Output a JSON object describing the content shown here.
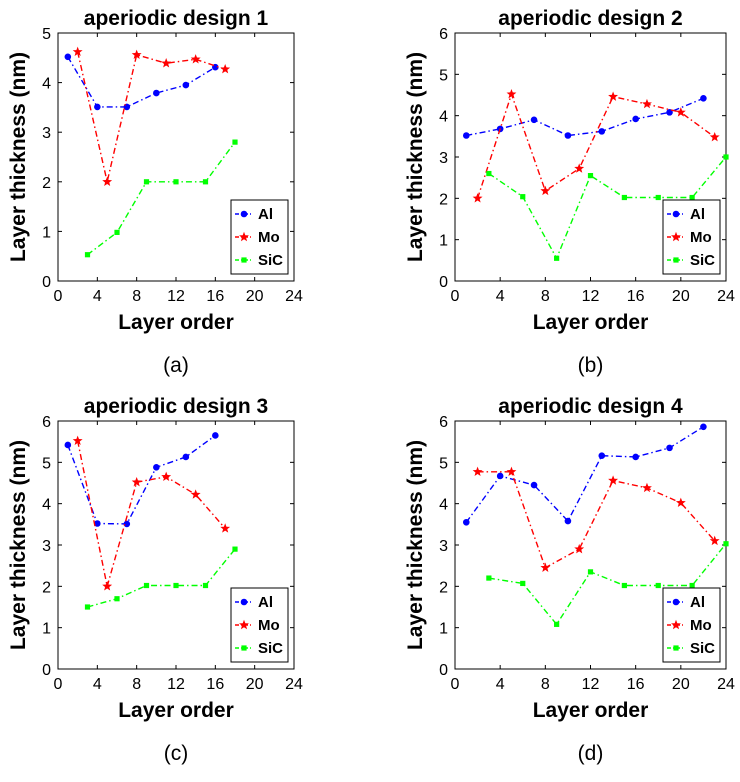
{
  "chart_data": [
    {
      "type": "line",
      "title": "aperiodic design 1",
      "caption": "(a)",
      "xlabel": "Layer order",
      "ylabel": "Layer thickness (nm)",
      "xlim": [
        0,
        24
      ],
      "ylim": [
        0,
        5
      ],
      "xticks": [
        0,
        4,
        8,
        12,
        16,
        20,
        24
      ],
      "yticks": [
        0,
        1,
        2,
        3,
        4,
        5
      ],
      "grid": false,
      "legend": "bottom-right",
      "series": [
        {
          "name": "Al",
          "color": "#0000ff",
          "marker": "circle",
          "x": [
            1,
            4,
            7,
            10,
            13,
            16
          ],
          "y": [
            4.52,
            3.51,
            3.51,
            3.79,
            3.95,
            4.31
          ]
        },
        {
          "name": "Mo",
          "color": "#ff0000",
          "marker": "star",
          "x": [
            2,
            5,
            8,
            11,
            14,
            17
          ],
          "y": [
            4.62,
            2.0,
            4.56,
            4.39,
            4.47,
            4.27
          ]
        },
        {
          "name": "SiC",
          "color": "#00ff00",
          "marker": "square",
          "x": [
            3,
            6,
            9,
            12,
            15,
            18
          ],
          "y": [
            0.53,
            0.98,
            2.0,
            2.0,
            2.0,
            2.8
          ]
        }
      ]
    },
    {
      "type": "line",
      "title": "aperiodic design 2",
      "caption": "(b)",
      "xlabel": "Layer order",
      "ylabel": "Layer thickness (nm)",
      "xlim": [
        0,
        24
      ],
      "ylim": [
        0,
        6
      ],
      "xticks": [
        0,
        4,
        8,
        12,
        16,
        20,
        24
      ],
      "yticks": [
        0,
        1,
        2,
        3,
        4,
        5,
        6
      ],
      "grid": false,
      "legend": "bottom-right",
      "series": [
        {
          "name": "Al",
          "color": "#0000ff",
          "marker": "circle",
          "x": [
            1,
            4,
            7,
            10,
            13,
            16,
            19,
            22
          ],
          "y": [
            3.52,
            3.68,
            3.9,
            3.52,
            3.62,
            3.92,
            4.08,
            4.42
          ]
        },
        {
          "name": "Mo",
          "color": "#ff0000",
          "marker": "star",
          "x": [
            2,
            5,
            8,
            11,
            14,
            17,
            20,
            23
          ],
          "y": [
            2.0,
            4.52,
            2.18,
            2.72,
            4.46,
            4.28,
            4.08,
            3.48
          ]
        },
        {
          "name": "SiC",
          "color": "#00ff00",
          "marker": "square",
          "x": [
            3,
            6,
            9,
            12,
            15,
            18,
            21,
            24
          ],
          "y": [
            2.6,
            2.04,
            0.55,
            2.55,
            2.02,
            2.02,
            2.02,
            3.0
          ]
        }
      ]
    },
    {
      "type": "line",
      "title": "aperiodic design 3",
      "caption": "(c)",
      "xlabel": "Layer order",
      "ylabel": "Layer thickness (nm)",
      "xlim": [
        0,
        24
      ],
      "ylim": [
        0,
        6
      ],
      "xticks": [
        0,
        4,
        8,
        12,
        16,
        20,
        24
      ],
      "yticks": [
        0,
        1,
        2,
        3,
        4,
        5,
        6
      ],
      "grid": false,
      "legend": "bottom-right",
      "series": [
        {
          "name": "Al",
          "color": "#0000ff",
          "marker": "circle",
          "x": [
            1,
            4,
            7,
            10,
            13,
            16
          ],
          "y": [
            5.42,
            3.52,
            3.51,
            4.88,
            5.13,
            5.65
          ]
        },
        {
          "name": "Mo",
          "color": "#ff0000",
          "marker": "star",
          "x": [
            2,
            5,
            8,
            11,
            14,
            17
          ],
          "y": [
            5.52,
            2.0,
            4.52,
            4.65,
            4.22,
            3.4
          ]
        },
        {
          "name": "SiC",
          "color": "#00ff00",
          "marker": "square",
          "x": [
            3,
            6,
            9,
            12,
            15,
            18
          ],
          "y": [
            1.5,
            1.7,
            2.02,
            2.02,
            2.02,
            2.9
          ]
        }
      ]
    },
    {
      "type": "line",
      "title": "aperiodic design 4",
      "caption": "(d)",
      "xlabel": "Layer order",
      "ylabel": "Layer thickness (nm)",
      "xlim": [
        0,
        24
      ],
      "ylim": [
        0,
        6
      ],
      "xticks": [
        0,
        4,
        8,
        12,
        16,
        20,
        24
      ],
      "yticks": [
        0,
        1,
        2,
        3,
        4,
        5,
        6
      ],
      "grid": false,
      "legend": "bottom-right",
      "series": [
        {
          "name": "Al",
          "color": "#0000ff",
          "marker": "circle",
          "x": [
            1,
            4,
            7,
            10,
            13,
            16,
            19,
            22
          ],
          "y": [
            3.55,
            4.67,
            4.45,
            3.58,
            5.16,
            5.13,
            5.35,
            5.86
          ]
        },
        {
          "name": "Mo",
          "color": "#ff0000",
          "marker": "star",
          "x": [
            2,
            5,
            8,
            11,
            14,
            17,
            20,
            23
          ],
          "y": [
            4.77,
            4.77,
            2.45,
            2.9,
            4.56,
            4.38,
            4.02,
            3.1
          ]
        },
        {
          "name": "SiC",
          "color": "#00ff00",
          "marker": "square",
          "x": [
            3,
            6,
            9,
            12,
            15,
            18,
            21,
            24
          ],
          "y": [
            2.2,
            2.07,
            1.08,
            2.35,
            2.02,
            2.02,
            2.02,
            3.03
          ]
        }
      ]
    }
  ]
}
